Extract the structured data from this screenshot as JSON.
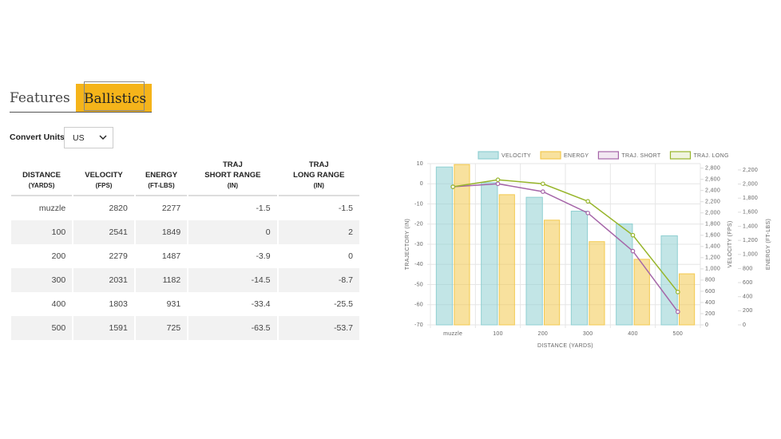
{
  "tabs": [
    "Features",
    "Ballistics"
  ],
  "convert_units": {
    "label": "Convert Units",
    "value": "US"
  },
  "table": {
    "headers": [
      [
        "DISTANCE",
        "(YARDS)"
      ],
      [
        "VELOCITY",
        "(FPS)"
      ],
      [
        "ENERGY",
        "(FT-LBS)"
      ],
      [
        "TRAJ",
        "SHORT RANGE",
        "(IN)"
      ],
      [
        "TRAJ",
        "LONG RANGE",
        "(IN)"
      ]
    ],
    "rows": [
      [
        "muzzle",
        2820,
        2277,
        -1.5,
        -1.5
      ],
      [
        100,
        2541,
        1849,
        0,
        2
      ],
      [
        200,
        2279,
        1487,
        -3.9,
        0
      ],
      [
        300,
        2031,
        1182,
        -14.5,
        -8.7
      ],
      [
        400,
        1803,
        931,
        -33.4,
        -25.5
      ],
      [
        500,
        1591,
        725,
        -63.5,
        -53.7
      ]
    ]
  },
  "chart_data": {
    "type": "bar-line",
    "x_label": "DISTANCE (YARDS)",
    "y_label": "TRAJECTORY (IN)",
    "y2_label": "VELOCITY (FPS)",
    "y3_label": "ENERGY (FT-LBS)",
    "categories": [
      "muzzle",
      "100",
      "200",
      "300",
      "400",
      "500"
    ],
    "series": [
      {
        "name": "VELOCITY",
        "kind": "bar",
        "axis": "y2",
        "color": "#8fcfd1",
        "values": [
          2820,
          2541,
          2279,
          2031,
          1803,
          1591
        ]
      },
      {
        "name": "ENERGY",
        "kind": "bar",
        "axis": "y3",
        "color": "#f3c94e",
        "values": [
          2277,
          1849,
          1487,
          1182,
          931,
          725
        ]
      },
      {
        "name": "TRAJ. SHORT",
        "kind": "line",
        "axis": "y",
        "color": "#a565a8",
        "values": [
          -1.5,
          0,
          -3.9,
          -14.5,
          -33.4,
          -63.5
        ]
      },
      {
        "name": "TRAJ. LONG",
        "kind": "line",
        "axis": "y",
        "color": "#97b52a",
        "values": [
          -1.5,
          2,
          0,
          -8.7,
          -25.5,
          -53.7
        ]
      }
    ],
    "ylim": [
      -70,
      10
    ],
    "yticks": [
      -70,
      -60,
      -50,
      -40,
      -30,
      -20,
      -10,
      0,
      10
    ],
    "y2lim": [
      0,
      2880
    ],
    "y2ticks": [
      0,
      200,
      400,
      600,
      800,
      {
        "value": 1000,
        "label": "1,000"
      },
      {
        "value": 1200,
        "label": "1,200"
      },
      {
        "value": 1400,
        "label": "1,400"
      },
      {
        "value": 1600,
        "label": "1,600"
      },
      {
        "value": 1800,
        "label": "1,800"
      },
      {
        "value": 2000,
        "label": "2,000"
      },
      {
        "value": 2200,
        "label": "2,200"
      },
      {
        "value": 2400,
        "label": "2,400"
      },
      {
        "value": 2600,
        "label": "2,600"
      },
      {
        "value": 2800,
        "label": "2,800"
      }
    ],
    "y3lim": [
      0,
      2290
    ],
    "y3ticks": [
      0,
      200,
      400,
      600,
      800,
      {
        "value": 1000,
        "label": "1,000"
      },
      {
        "value": 1200,
        "label": "1,200"
      },
      {
        "value": 1400,
        "label": "1,400"
      },
      {
        "value": 1600,
        "label": "1,600"
      },
      {
        "value": 1800,
        "label": "1,800"
      },
      {
        "value": 2000,
        "label": "2,000"
      },
      {
        "value": 2200,
        "label": "2,200"
      }
    ],
    "grid": true,
    "legend": "top"
  }
}
